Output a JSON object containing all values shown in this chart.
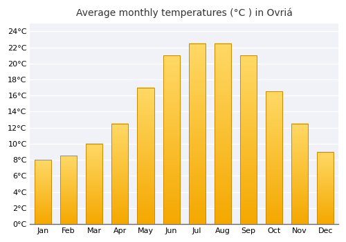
{
  "title": "Average monthly temperatures (°C ) in Ovriá",
  "months": [
    "Jan",
    "Feb",
    "Mar",
    "Apr",
    "May",
    "Jun",
    "Jul",
    "Aug",
    "Sep",
    "Oct",
    "Nov",
    "Dec"
  ],
  "values": [
    8.0,
    8.5,
    10.0,
    12.5,
    17.0,
    21.0,
    22.5,
    22.5,
    21.0,
    16.5,
    12.5,
    9.0
  ],
  "bar_color_light": "#FFD966",
  "bar_color_dark": "#F5A800",
  "bar_border_color": "#CC8800",
  "ylim": [
    0,
    25
  ],
  "yticks": [
    0,
    2,
    4,
    6,
    8,
    10,
    12,
    14,
    16,
    18,
    20,
    22,
    24
  ],
  "ytick_labels": [
    "0°C",
    "2°C",
    "4°C",
    "6°C",
    "8°C",
    "10°C",
    "12°C",
    "14°C",
    "16°C",
    "18°C",
    "20°C",
    "22°C",
    "24°C"
  ],
  "bg_color": "#ffffff",
  "plot_bg_color": "#f0f2f7",
  "grid_color": "#ffffff",
  "title_fontsize": 10,
  "tick_fontsize": 8,
  "bar_width": 0.65
}
